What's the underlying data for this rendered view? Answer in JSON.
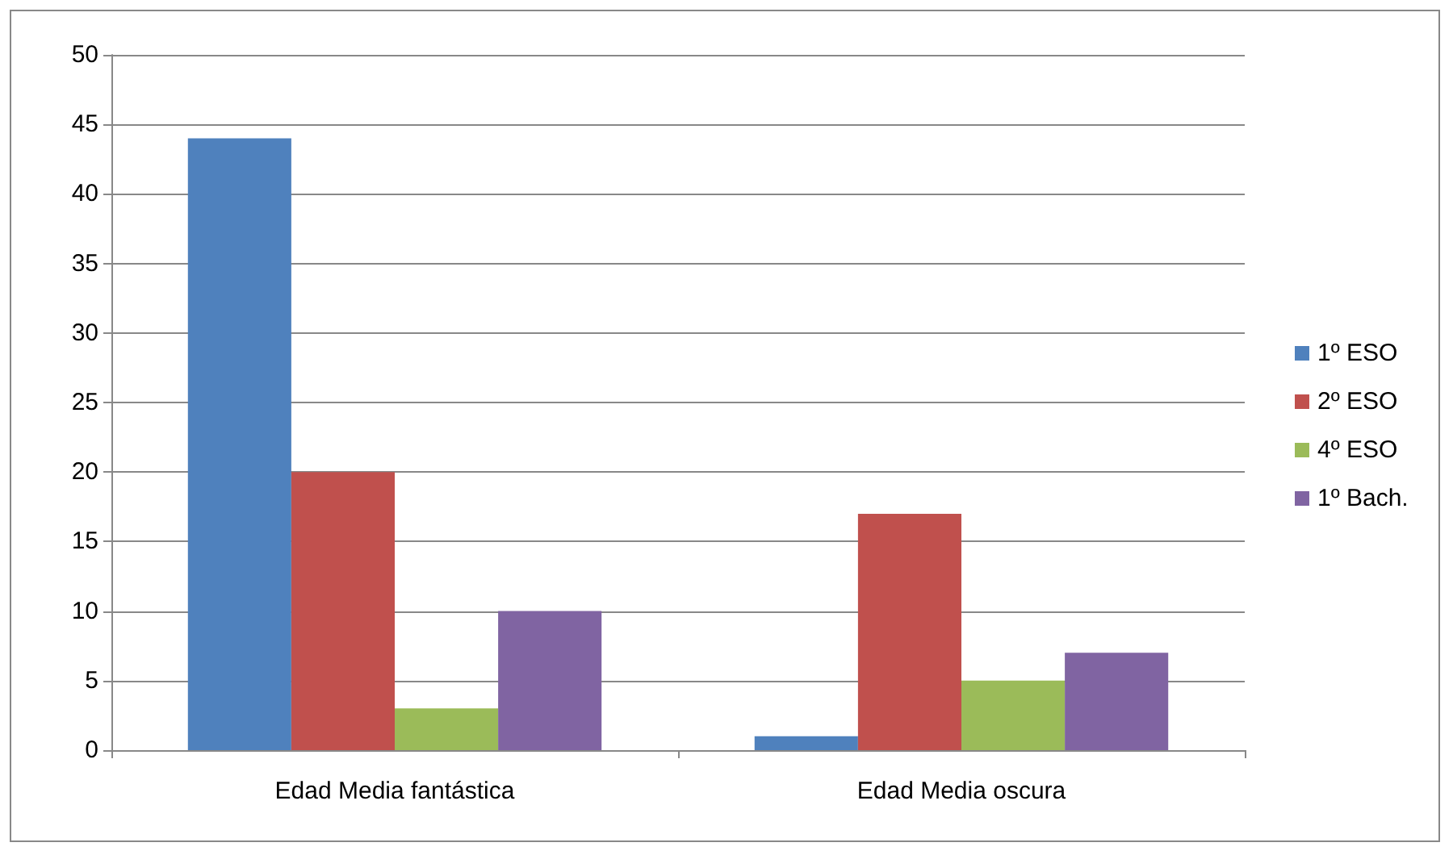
{
  "chart_data": {
    "type": "bar",
    "categories": [
      "Edad Media fantástica",
      "Edad Media oscura"
    ],
    "series": [
      {
        "name": "1º ESO",
        "color": "#4f81bd",
        "values": [
          44,
          1
        ]
      },
      {
        "name": "2º ESO",
        "color": "#c0504d",
        "values": [
          20,
          17
        ]
      },
      {
        "name": "4º ESO",
        "color": "#9bbb59",
        "values": [
          3,
          5
        ]
      },
      {
        "name": "1º Bach.",
        "color": "#8064a2",
        "values": [
          10,
          7
        ]
      }
    ],
    "ylim": [
      0,
      50
    ],
    "yticks": [
      0,
      5,
      10,
      15,
      20,
      25,
      30,
      35,
      40,
      45,
      50
    ],
    "grid": "y",
    "legend": "right"
  }
}
